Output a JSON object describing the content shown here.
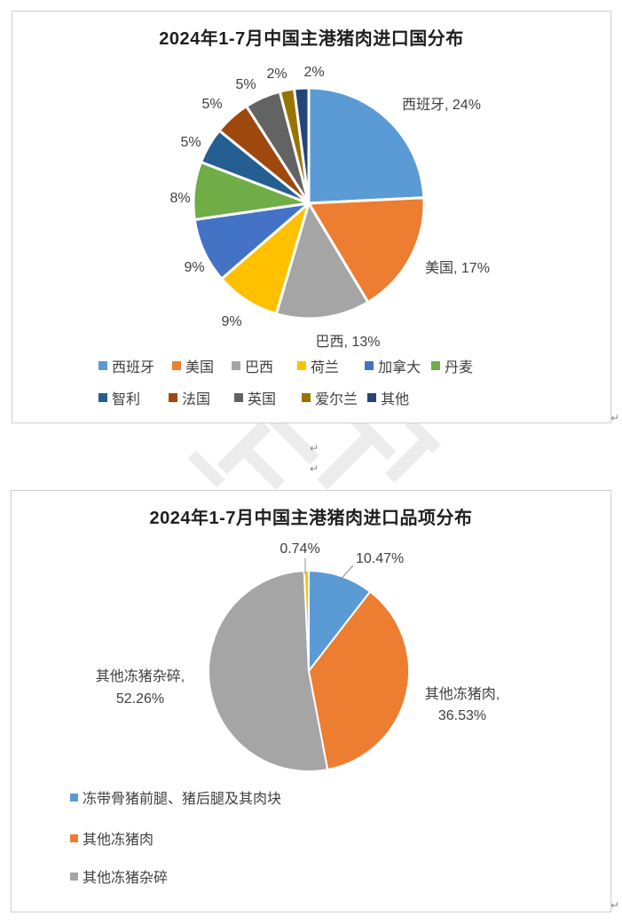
{
  "page": {
    "paragraph_mark": "↵"
  },
  "chart_data": [
    {
      "type": "pie",
      "title": "2024年1-7月中国主港猪肉进口国分布",
      "categories": [
        "西班牙",
        "美国",
        "巴西",
        "荷兰",
        "加拿大",
        "丹麦",
        "智利",
        "法国",
        "英国",
        "爱尔兰",
        "其他"
      ],
      "values": [
        24,
        17,
        13,
        9,
        9,
        8,
        5,
        5,
        5,
        2,
        2
      ],
      "data_labels": [
        [
          "西班牙, 24%"
        ],
        [
          "美国, 17%"
        ],
        [
          "巴西, 13%"
        ],
        [
          "9%"
        ],
        [
          "9%"
        ],
        [
          "8%"
        ],
        [
          "5%"
        ],
        [
          "5%"
        ],
        [
          "5%"
        ],
        [
          "2%"
        ],
        [
          "2%"
        ]
      ],
      "colors": [
        "#5B9BD5",
        "#ED7D31",
        "#A5A5A5",
        "#FFC000",
        "#4472C4",
        "#70AD47",
        "#255E91",
        "#9E480E",
        "#636363",
        "#997300",
        "#264478"
      ],
      "legend": [
        "西班牙",
        "美国",
        "巴西",
        "荷兰",
        "加拿大",
        "丹麦",
        "智利",
        "法国",
        "英国",
        "爱尔兰",
        "其他"
      ],
      "legend_position": "bottom",
      "start_angle_deg": 0,
      "direction": "clockwise"
    },
    {
      "type": "pie",
      "title": "2024年1-7月中国主港猪肉进口品项分布",
      "categories": [
        "冻带骨猪前腿、猪后腿及其肉块",
        "其他冻猪肉",
        "其他冻猪杂碎",
        ""
      ],
      "values": [
        10.47,
        36.53,
        52.26,
        0.74
      ],
      "data_labels": [
        [
          "10.47%"
        ],
        [
          "其他冻猪肉,",
          "36.53%"
        ],
        [
          "其他冻猪杂碎,",
          "52.26%"
        ],
        [
          "0.74%"
        ]
      ],
      "colors": [
        "#5B9BD5",
        "#ED7D31",
        "#A5A5A5",
        "#FFC000"
      ],
      "legend": [
        "冻带骨猪前腿、猪后腿及其肉块",
        "其他冻猪肉",
        "其他冻猪杂碎"
      ],
      "legend_position": "bottom",
      "start_angle_deg": 0,
      "direction": "clockwise"
    }
  ]
}
